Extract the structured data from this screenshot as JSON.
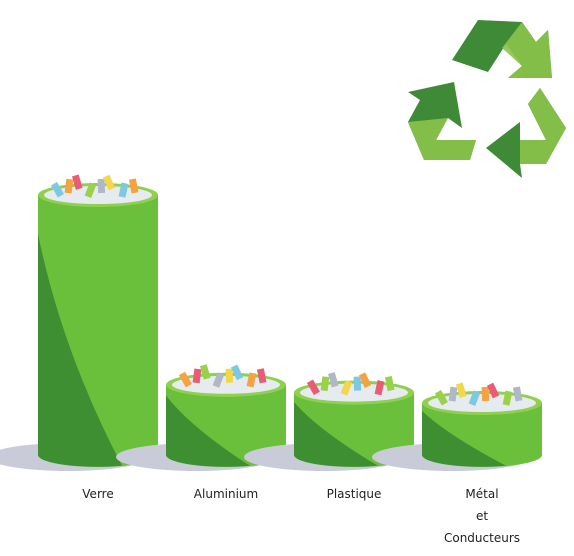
{
  "chart_data": {
    "type": "cylinder",
    "categories": [
      "Verre",
      "Aluminium",
      "Plastique",
      "Métal\net\nConducteurs"
    ],
    "values": [
      100,
      27,
      24,
      20
    ],
    "color": "#6abf3b"
  }
}
